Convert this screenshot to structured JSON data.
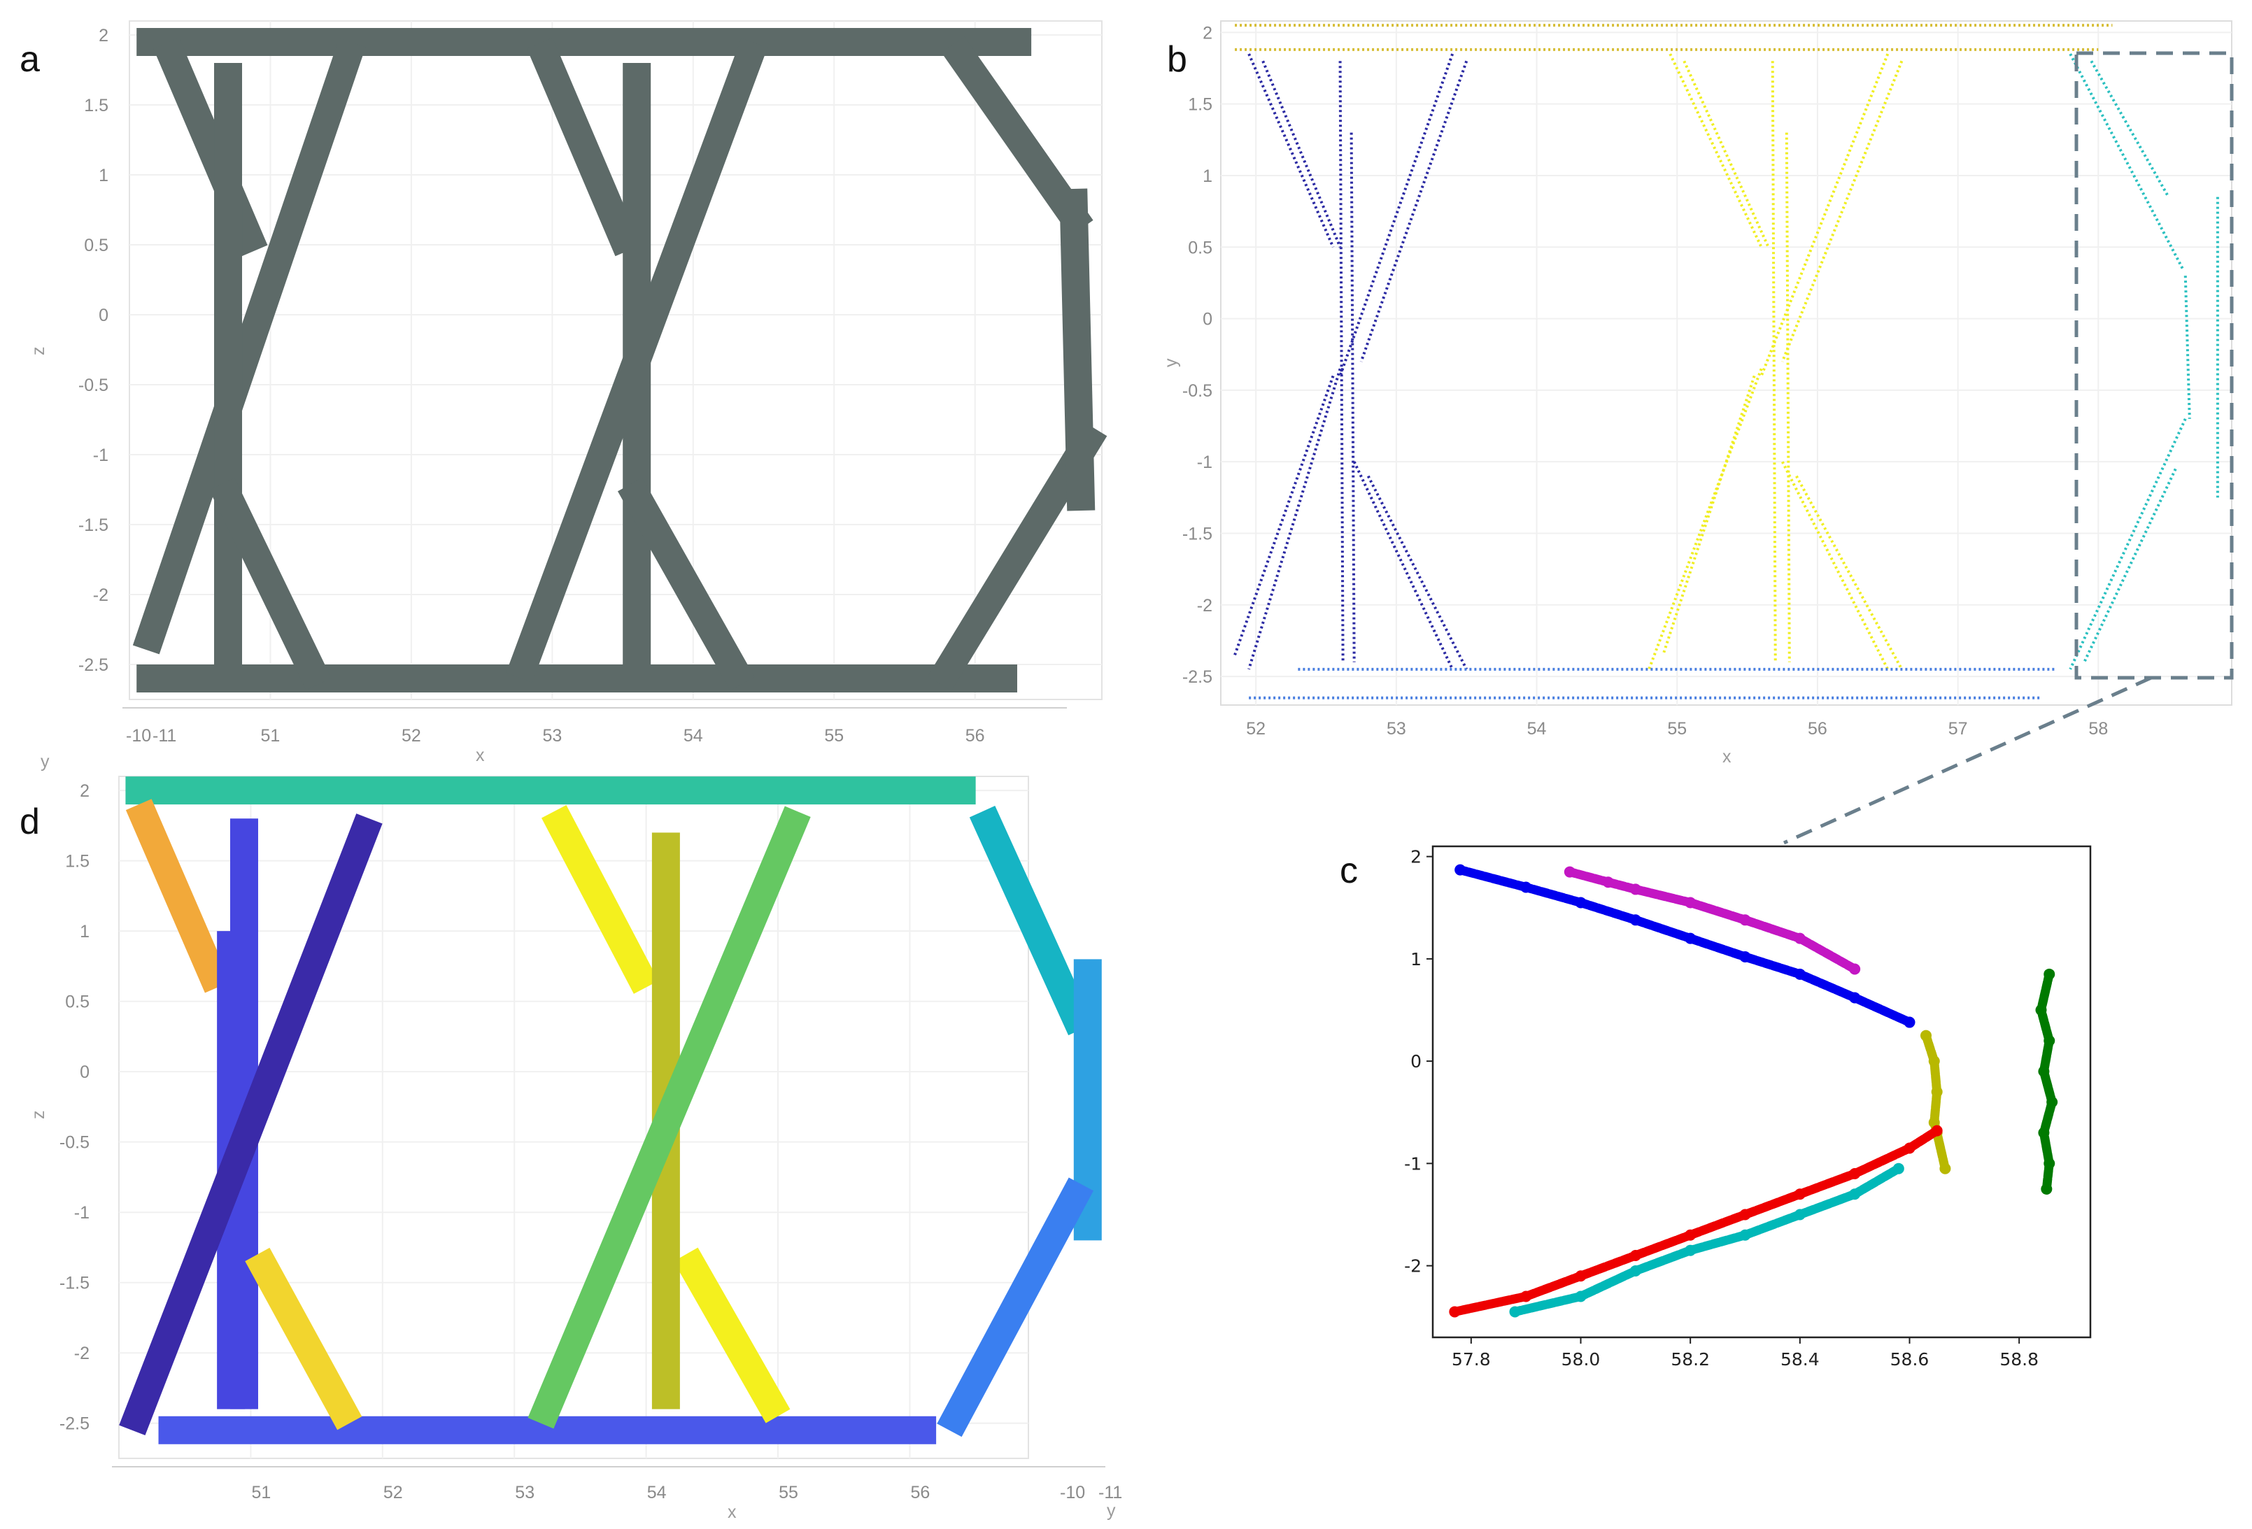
{
  "panels": {
    "a": {
      "label": "a",
      "xlabel": "x",
      "ylabel": "z",
      "corner_label": "",
      "x_ticks": [
        "51",
        "52",
        "53",
        "54",
        "55",
        "56"
      ],
      "y_ticks": [
        "2",
        "1.5",
        "1",
        "0.5",
        "0",
        "-0.5",
        "-1",
        "-1.5",
        "-2",
        "-2.5"
      ],
      "extra_ticks": [
        "-10",
        "-11"
      ],
      "color": "#5d6a68"
    },
    "b": {
      "label": "b",
      "xlabel": "x",
      "ylabel": "y",
      "x_ticks": [
        "52",
        "53",
        "54",
        "55",
        "56",
        "57",
        "58"
      ],
      "y_ticks": [
        "2",
        "1.5",
        "1",
        "0.5",
        "0",
        "-0.5",
        "-1",
        "-1.5",
        "-2",
        "-2.5"
      ],
      "colors": {
        "navy": "#2b2aa3",
        "yellow": "#f0ee22",
        "cyan": "#2bc0c0",
        "blue": "#4a7fe0",
        "gold": "#d6bd34"
      }
    },
    "c": {
      "label": "c",
      "x_ticks": [
        "57.8",
        "58.0",
        "58.2",
        "58.4",
        "58.6",
        "58.8"
      ],
      "y_ticks": [
        "2",
        "1",
        "0",
        "-1",
        "-2"
      ]
    },
    "d": {
      "label": "d",
      "xlabel": "x",
      "ylabel": "z",
      "corner_label": "y",
      "corner_label2": "y",
      "x_ticks": [
        "51",
        "52",
        "53",
        "54",
        "55",
        "56"
      ],
      "y_ticks": [
        "2",
        "1.5",
        "1",
        "0.5",
        "0",
        "-0.5",
        "-1",
        "-1.5",
        "-2",
        "-2.5"
      ],
      "extra_ticks": [
        "-10",
        "-11"
      ]
    }
  },
  "chart_data": [
    {
      "panel": "a",
      "type": "scatter",
      "title": "",
      "xlabel": "x",
      "ylabel": "z",
      "xlim": [
        50.0,
        56.9
      ],
      "ylim": [
        -2.75,
        2.1
      ],
      "series": [
        {
          "values": [
            {
              "x1": 50.15,
              "y1": 1.95,
              "x2": 56.3,
              "y2": 1.95
            },
            {
              "x1": 50.15,
              "y1": -2.6,
              "x2": 56.2,
              "y2": -2.6
            },
            {
              "x1": 50.3,
              "y1": 1.85,
              "x2": 50.85,
              "y2": 0.55
            },
            {
              "x1": 51.55,
              "y1": 1.85,
              "x2": 50.15,
              "y2": -2.3
            },
            {
              "x1": 50.7,
              "y1": 1.7,
              "x2": 50.7,
              "y2": -2.4
            },
            {
              "x1": 50.7,
              "y1": -1.3,
              "x2": 51.3,
              "y2": -2.55
            },
            {
              "x1": 52.95,
              "y1": 1.85,
              "x2": 53.5,
              "y2": 0.55
            },
            {
              "x1": 54.4,
              "y1": 1.85,
              "x2": 52.8,
              "y2": -2.5
            },
            {
              "x1": 53.6,
              "y1": 1.7,
              "x2": 53.6,
              "y2": -2.4
            },
            {
              "x1": 53.6,
              "y1": -1.3,
              "x2": 54.3,
              "y2": -2.55
            },
            {
              "x1": 55.9,
              "y1": 1.85,
              "x2": 56.7,
              "y2": 0.7
            },
            {
              "x1": 56.8,
              "y1": -0.9,
              "x2": 55.8,
              "y2": -2.55
            },
            {
              "x1": 56.7,
              "y1": 0.8,
              "x2": 56.75,
              "y2": -1.3
            }
          ]
        }
      ]
    },
    {
      "panel": "b",
      "type": "scatter",
      "title": "",
      "xlabel": "x",
      "ylabel": "y",
      "xlim": [
        51.75,
        58.95
      ],
      "ylim": [
        -2.7,
        2.08
      ],
      "series": [
        {
          "color": "navy",
          "values": [
            {
              "x1": 51.95,
              "y1": 1.85,
              "x2": 52.55,
              "y2": 0.5
            },
            {
              "x1": 52.05,
              "y1": 1.8,
              "x2": 52.6,
              "y2": 0.5
            },
            {
              "x1": 53.4,
              "y1": 1.85,
              "x2": 52.6,
              "y2": -0.4
            },
            {
              "x1": 53.5,
              "y1": 1.8,
              "x2": 52.75,
              "y2": -0.3
            },
            {
              "x1": 52.6,
              "y1": -0.35,
              "x2": 51.95,
              "y2": -2.45
            },
            {
              "x1": 52.55,
              "y1": -0.4,
              "x2": 51.85,
              "y2": -2.35
            },
            {
              "x1": 52.7,
              "y1": -1.0,
              "x2": 53.4,
              "y2": -2.45
            },
            {
              "x1": 52.8,
              "y1": -1.1,
              "x2": 53.5,
              "y2": -2.45
            },
            {
              "x1": 52.6,
              "y1": 1.8,
              "x2": 52.62,
              "y2": -2.4
            },
            {
              "x1": 52.68,
              "y1": 1.3,
              "x2": 52.7,
              "y2": -2.4
            }
          ]
        },
        {
          "color": "yellow",
          "values": [
            {
              "x1": 54.95,
              "y1": 1.85,
              "x2": 55.6,
              "y2": 0.5
            },
            {
              "x1": 55.05,
              "y1": 1.8,
              "x2": 55.65,
              "y2": 0.5
            },
            {
              "x1": 56.5,
              "y1": 1.85,
              "x2": 55.6,
              "y2": -0.4
            },
            {
              "x1": 56.6,
              "y1": 1.8,
              "x2": 55.75,
              "y2": -0.3
            },
            {
              "x1": 55.6,
              "y1": -0.35,
              "x2": 54.8,
              "y2": -2.45
            },
            {
              "x1": 55.55,
              "y1": -0.4,
              "x2": 54.9,
              "y2": -2.35
            },
            {
              "x1": 55.75,
              "y1": -1.0,
              "x2": 56.5,
              "y2": -2.45
            },
            {
              "x1": 55.85,
              "y1": -1.1,
              "x2": 56.6,
              "y2": -2.45
            },
            {
              "x1": 55.68,
              "y1": 1.8,
              "x2": 55.7,
              "y2": -2.4
            },
            {
              "x1": 55.78,
              "y1": 1.3,
              "x2": 55.8,
              "y2": -2.4
            }
          ]
        },
        {
          "color": "cyan",
          "values": [
            {
              "x1": 57.8,
              "y1": 1.85,
              "x2": 58.6,
              "y2": 0.35
            },
            {
              "x1": 57.95,
              "y1": 1.8,
              "x2": 58.5,
              "y2": 0.85
            },
            {
              "x1": 58.62,
              "y1": 0.3,
              "x2": 58.65,
              "y2": -0.7
            },
            {
              "x1": 58.62,
              "y1": -0.7,
              "x2": 57.8,
              "y2": -2.45
            },
            {
              "x1": 58.55,
              "y1": -1.05,
              "x2": 57.9,
              "y2": -2.4
            },
            {
              "x1": 58.85,
              "y1": 0.85,
              "x2": 58.85,
              "y2": -1.25
            }
          ]
        },
        {
          "color": "blue",
          "values": [
            {
              "x1": 52.3,
              "y1": -2.45,
              "x2": 57.7,
              "y2": -2.45
            },
            {
              "x1": 51.95,
              "y1": -2.65,
              "x2": 57.6,
              "y2": -2.65
            }
          ]
        },
        {
          "color": "gold",
          "values": [
            {
              "x1": 51.85,
              "y1": 2.05,
              "x2": 58.1,
              "y2": 2.05
            },
            {
              "x1": 51.85,
              "y1": 1.88,
              "x2": 58.0,
              "y2": 1.88
            }
          ]
        }
      ]
    },
    {
      "panel": "c",
      "type": "scatter",
      "title": "",
      "xlabel": "",
      "ylabel": "",
      "xlim": [
        57.73,
        58.93
      ],
      "ylim": [
        -2.7,
        2.1
      ],
      "series": [
        {
          "color": "#0000ee",
          "x": [
            57.78,
            57.9,
            58.0,
            58.1,
            58.2,
            58.3,
            58.4,
            58.5,
            58.6
          ],
          "y": [
            1.87,
            1.7,
            1.55,
            1.38,
            1.2,
            1.02,
            0.85,
            0.62,
            0.38
          ]
        },
        {
          "color": "#c316c3",
          "x": [
            57.98,
            58.05,
            58.1,
            58.2,
            58.3,
            58.4,
            58.5
          ],
          "y": [
            1.85,
            1.75,
            1.68,
            1.55,
            1.38,
            1.2,
            0.9
          ]
        },
        {
          "color": "#b8b800",
          "x": [
            58.63,
            58.645,
            58.65,
            58.645,
            58.65,
            58.665
          ],
          "y": [
            0.25,
            0.0,
            -0.3,
            -0.6,
            -0.7,
            -1.05
          ]
        },
        {
          "color": "#ee0000",
          "x": [
            57.77,
            57.9,
            58.0,
            58.1,
            58.2,
            58.3,
            58.4,
            58.5,
            58.6,
            58.65
          ],
          "y": [
            -2.45,
            -2.3,
            -2.1,
            -1.9,
            -1.7,
            -1.5,
            -1.3,
            -1.1,
            -0.85,
            -0.68
          ]
        },
        {
          "color": "#00b8b8",
          "x": [
            57.88,
            58.0,
            58.1,
            58.2,
            58.3,
            58.4,
            58.5,
            58.58
          ],
          "y": [
            -2.45,
            -2.3,
            -2.05,
            -1.85,
            -1.7,
            -1.5,
            -1.3,
            -1.05
          ]
        },
        {
          "color": "#007a00",
          "x": [
            58.855,
            58.84,
            58.855,
            58.845,
            58.86,
            58.845,
            58.855,
            58.85
          ],
          "y": [
            0.85,
            0.5,
            0.2,
            -0.1,
            -0.4,
            -0.7,
            -1.0,
            -1.25
          ]
        }
      ]
    },
    {
      "panel": "d",
      "type": "scatter",
      "title": "",
      "xlabel": "x",
      "ylabel": "z",
      "xlim": [
        50.0,
        56.9
      ],
      "ylim": [
        -2.75,
        2.1
      ],
      "series": [
        {
          "color": "#2fc29f",
          "values": [
            {
              "x1": 50.05,
              "y1": 2.0,
              "x2": 56.5,
              "y2": 2.0
            }
          ]
        },
        {
          "color": "#4a58ea",
          "values": [
            {
              "x1": 50.3,
              "y1": -2.55,
              "x2": 56.2,
              "y2": -2.55
            }
          ]
        },
        {
          "color": "#f2a93a",
          "values": [
            {
              "x1": 50.15,
              "y1": 1.9,
              "x2": 50.75,
              "y2": 0.6
            }
          ]
        },
        {
          "color": "#4646e0",
          "values": [
            {
              "x1": 50.95,
              "y1": 1.8,
              "x2": 50.95,
              "y2": -2.4
            },
            {
              "x1": 50.85,
              "y1": 1.0,
              "x2": 50.85,
              "y2": -2.4
            }
          ]
        },
        {
          "color": "#3a2aa8",
          "values": [
            {
              "x1": 51.9,
              "y1": 1.8,
              "x2": 50.1,
              "y2": -2.55
            }
          ]
        },
        {
          "color": "#f2d52e",
          "values": [
            {
              "x1": 51.05,
              "y1": -1.3,
              "x2": 51.75,
              "y2": -2.5
            }
          ]
        },
        {
          "color": "#f4f01e",
          "values": [
            {
              "x1": 53.3,
              "y1": 1.85,
              "x2": 54.0,
              "y2": 0.6
            },
            {
              "x1": 54.3,
              "y1": -1.3,
              "x2": 55.0,
              "y2": -2.45
            }
          ]
        },
        {
          "color": "#bdbf27",
          "values": [
            {
              "x1": 54.15,
              "y1": 1.7,
              "x2": 54.15,
              "y2": -2.4
            }
          ]
        },
        {
          "color": "#65c862",
          "values": [
            {
              "x1": 55.15,
              "y1": 1.85,
              "x2": 53.2,
              "y2": -2.5
            }
          ]
        },
        {
          "color": "#16b4c4",
          "values": [
            {
              "x1": 56.55,
              "y1": 1.85,
              "x2": 57.3,
              "y2": 0.3
            }
          ]
        },
        {
          "color": "#2ea1e2",
          "values": [
            {
              "x1": 57.35,
              "y1": 0.8,
              "x2": 57.35,
              "y2": -1.2
            }
          ]
        },
        {
          "color": "#3a7ff0",
          "values": [
            {
              "x1": 57.3,
              "y1": -0.8,
              "x2": 56.3,
              "y2": -2.55
            }
          ]
        }
      ]
    }
  ]
}
